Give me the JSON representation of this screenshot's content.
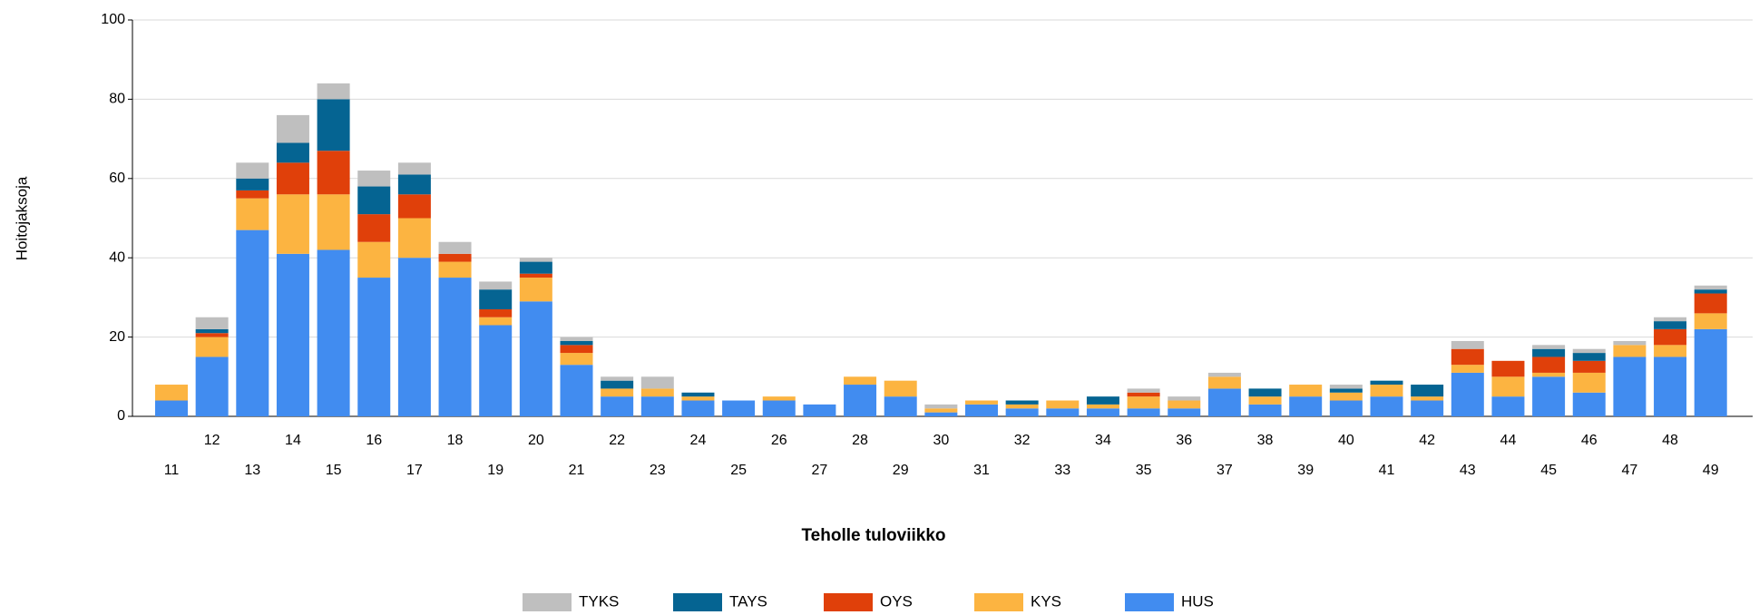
{
  "chart_data": {
    "type": "stacked_bar",
    "x_label": "Teholle tuloviikko",
    "y_label": "Hoitojaksoja",
    "categories": [
      "11",
      "12",
      "13",
      "14",
      "15",
      "16",
      "17",
      "18",
      "19",
      "20",
      "21",
      "22",
      "23",
      "24",
      "25",
      "26",
      "27",
      "28",
      "29",
      "30",
      "31",
      "32",
      "33",
      "34",
      "35",
      "36",
      "37",
      "38",
      "39",
      "40",
      "41",
      "42",
      "43",
      "44",
      "45",
      "46",
      "47",
      "48",
      "49"
    ],
    "series": [
      {
        "name": "HUS",
        "color": "#418cf0",
        "values": [
          4,
          15,
          47,
          41,
          42,
          35,
          40,
          35,
          23,
          29,
          13,
          5,
          5,
          4,
          4,
          4,
          3,
          8,
          5,
          1,
          3,
          2,
          2,
          2,
          2,
          2,
          7,
          3,
          5,
          4,
          5,
          4,
          11,
          5,
          10,
          6,
          15,
          15,
          22
        ]
      },
      {
        "name": "KYS",
        "color": "#fcb441",
        "values": [
          4,
          5,
          8,
          15,
          14,
          9,
          10,
          4,
          2,
          6,
          3,
          2,
          2,
          1,
          0,
          1,
          0,
          2,
          4,
          1,
          1,
          1,
          2,
          1,
          3,
          2,
          3,
          2,
          3,
          2,
          3,
          1,
          2,
          5,
          1,
          5,
          3,
          3,
          4
        ]
      },
      {
        "name": "OYS",
        "color": "#e0400a",
        "values": [
          0,
          1,
          2,
          8,
          11,
          7,
          6,
          2,
          2,
          1,
          2,
          0,
          0,
          0,
          0,
          0,
          0,
          0,
          0,
          0,
          0,
          0,
          0,
          0,
          1,
          0,
          0,
          0,
          0,
          0,
          0,
          0,
          4,
          4,
          4,
          3,
          0,
          4,
          5
        ]
      },
      {
        "name": "TAYS",
        "color": "#056492",
        "values": [
          0,
          1,
          3,
          5,
          13,
          7,
          5,
          0,
          5,
          3,
          1,
          2,
          0,
          1,
          0,
          0,
          0,
          0,
          0,
          0,
          0,
          1,
          0,
          2,
          0,
          0,
          0,
          2,
          0,
          1,
          1,
          3,
          0,
          0,
          2,
          2,
          0,
          2,
          1
        ]
      },
      {
        "name": "TYKS",
        "color": "#bfbfbf",
        "values": [
          0,
          3,
          4,
          7,
          4,
          4,
          3,
          3,
          2,
          1,
          1,
          1,
          3,
          0,
          0,
          0,
          0,
          0,
          0,
          1,
          0,
          0,
          0,
          0,
          1,
          1,
          1,
          0,
          0,
          1,
          0,
          0,
          2,
          0,
          1,
          1,
          1,
          1,
          1
        ]
      }
    ],
    "ylim": [
      0,
      100
    ],
    "yticks": [
      0,
      20,
      40,
      60,
      80,
      100
    ],
    "grid": true
  }
}
